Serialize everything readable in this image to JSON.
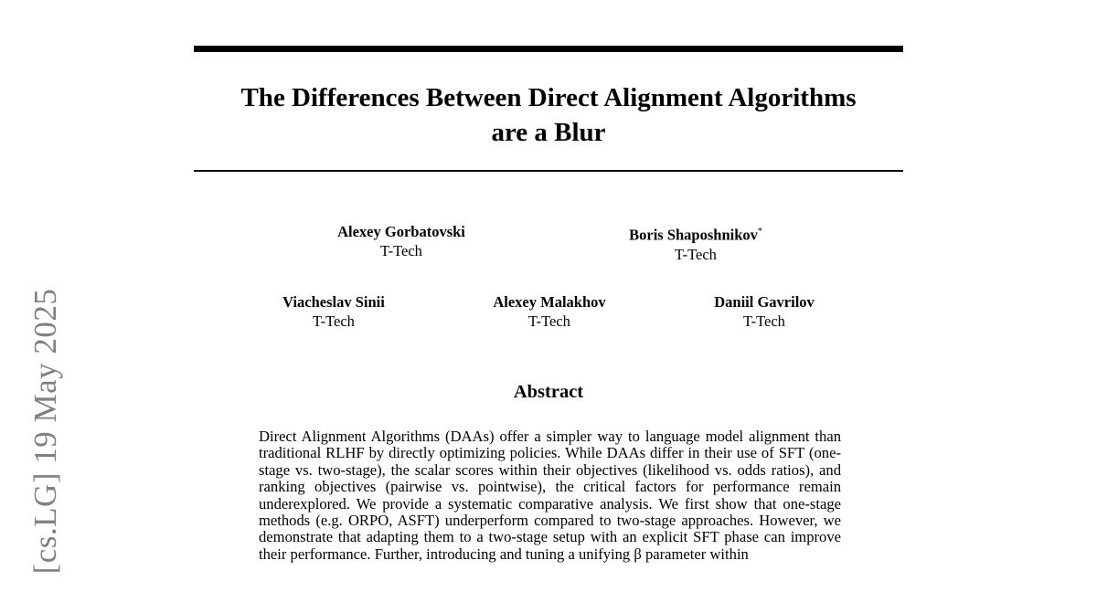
{
  "sidebar_stamp": "[cs.LG]  19 May 2025",
  "title_lines": [
    "The Differences Between Direct Alignment Algorithms",
    "are a Blur"
  ],
  "authors": [
    {
      "name": "Alexey Gorbatovski",
      "affiliation": "T-Tech",
      "mark": ""
    },
    {
      "name": "Boris Shaposhnikov",
      "affiliation": "T-Tech",
      "mark": "*"
    },
    {
      "name": "Viacheslav Sinii",
      "affiliation": "T-Tech",
      "mark": ""
    },
    {
      "name": "Alexey Malakhov",
      "affiliation": "T-Tech",
      "mark": ""
    },
    {
      "name": "Daniil Gavrilov",
      "affiliation": "T-Tech",
      "mark": ""
    }
  ],
  "abstract": {
    "heading": "Abstract",
    "text": "Direct Alignment Algorithms (DAAs) offer a simpler way to language model alignment than traditional RLHF by directly optimizing policies. While DAAs differ in their use of SFT (one-stage vs.  two-stage), the scalar scores within their objectives (likelihood vs. odds ratios), and ranking objectives (pairwise vs. pointwise), the critical factors for performance remain underexplored. We provide a systematic comparative analysis. We first show that one-stage methods (e.g. ORPO, ASFT) underperform compared to two-stage approaches. However, we demonstrate that adapting them to a two-stage setup with an explicit SFT phase can improve their performance. Further, introducing and tuning a unifying β parameter within"
  }
}
